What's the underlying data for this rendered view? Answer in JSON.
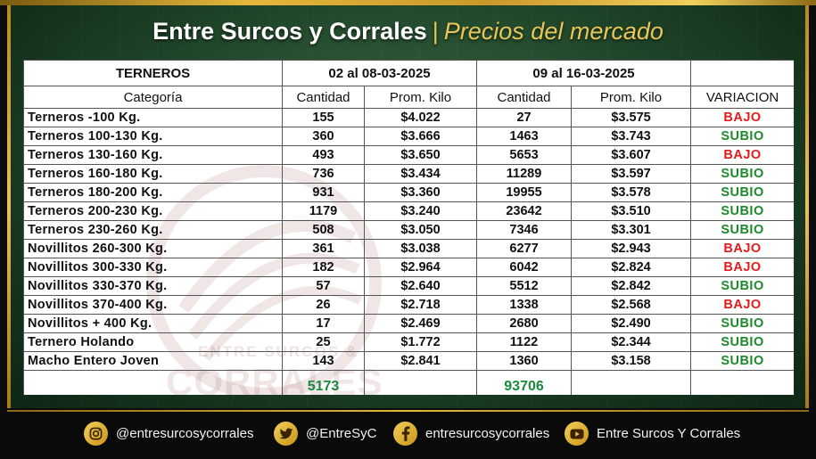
{
  "header": {
    "brand": "Entre Surcos y Corrales",
    "separator": "|",
    "subtitle": "Precios del mercado"
  },
  "table": {
    "group_headers": {
      "first": "TERNEROS",
      "period1": "02 al 08-03-2025",
      "period2": "09 al 16-03-2025"
    },
    "column_headers": [
      "Categoría",
      "Cantidad",
      "Prom. Kilo",
      "Cantidad",
      "Prom. Kilo",
      "VARIACION"
    ],
    "rows": [
      {
        "categoria": "Terneros -100 Kg.",
        "cant1": "155",
        "prom1": "$4.022",
        "cant2": "27",
        "prom2": "$3.575",
        "variacion": "BAJO"
      },
      {
        "categoria": "Terneros 100-130 Kg.",
        "cant1": "360",
        "prom1": "$3.666",
        "cant2": "1463",
        "prom2": "$3.743",
        "variacion": "SUBIO"
      },
      {
        "categoria": "Terneros 130-160 Kg.",
        "cant1": "493",
        "prom1": "$3.650",
        "cant2": "5653",
        "prom2": "$3.607",
        "variacion": "BAJO"
      },
      {
        "categoria": "Terneros 160-180 Kg.",
        "cant1": "736",
        "prom1": "$3.434",
        "cant2": "11289",
        "prom2": "$3.597",
        "variacion": "SUBIO"
      },
      {
        "categoria": "Terneros 180-200 Kg.",
        "cant1": "931",
        "prom1": "$3.360",
        "cant2": "19955",
        "prom2": "$3.578",
        "variacion": "SUBIO"
      },
      {
        "categoria": "Terneros 200-230 Kg.",
        "cant1": "1179",
        "prom1": "$3.240",
        "cant2": "23642",
        "prom2": "$3.510",
        "variacion": "SUBIO"
      },
      {
        "categoria": "Terneros 230-260 Kg.",
        "cant1": "508",
        "prom1": "$3.050",
        "cant2": "7346",
        "prom2": "$3.301",
        "variacion": "SUBIO"
      },
      {
        "categoria": "Novillitos 260-300 Kg.",
        "cant1": "361",
        "prom1": "$3.038",
        "cant2": "6277",
        "prom2": "$2.943",
        "variacion": "BAJO"
      },
      {
        "categoria": "Novillitos 300-330 Kg.",
        "cant1": "182",
        "prom1": "$2.964",
        "cant2": "6042",
        "prom2": "$2.824",
        "variacion": "BAJO"
      },
      {
        "categoria": "Novillitos 330-370 Kg.",
        "cant1": "57",
        "prom1": "$2.640",
        "cant2": "5512",
        "prom2": "$2.842",
        "variacion": "SUBIO"
      },
      {
        "categoria": "Novillitos 370-400 Kg.",
        "cant1": "26",
        "prom1": "$2.718",
        "cant2": "1338",
        "prom2": "$2.568",
        "variacion": "BAJO"
      },
      {
        "categoria": "Novillitos  + 400 Kg.",
        "cant1": "17",
        "prom1": "$2.469",
        "cant2": "2680",
        "prom2": "$2.490",
        "variacion": "SUBIO"
      },
      {
        "categoria": "Ternero Holando",
        "cant1": "25",
        "prom1": "$1.772",
        "cant2": "1122",
        "prom2": "$2.344",
        "variacion": "SUBIO"
      },
      {
        "categoria": "Macho Entero Joven",
        "cant1": "143",
        "prom1": "$2.841",
        "cant2": "1360",
        "prom2": "$3.158",
        "variacion": "SUBIO"
      }
    ],
    "totals": {
      "cant1": "5173",
      "cant2": "93706"
    }
  },
  "watermark": {
    "line1": "ENTRE SURCOS &",
    "line2": "CORRALES"
  },
  "footer": {
    "instagram": "@entresurcosycorrales",
    "twitter": "@EntreSyC",
    "facebook": "entresurcosycorrales",
    "youtube": "Entre Surcos Y Corrales"
  },
  "colors": {
    "bajo": "#e31b1b",
    "subio": "#1c8a2a",
    "totals": "#1a8a3d",
    "gold": "#e8c65a",
    "panel_green": "#234a2c"
  },
  "icons": [
    "instagram-icon",
    "twitter-icon",
    "facebook-icon",
    "youtube-icon"
  ]
}
